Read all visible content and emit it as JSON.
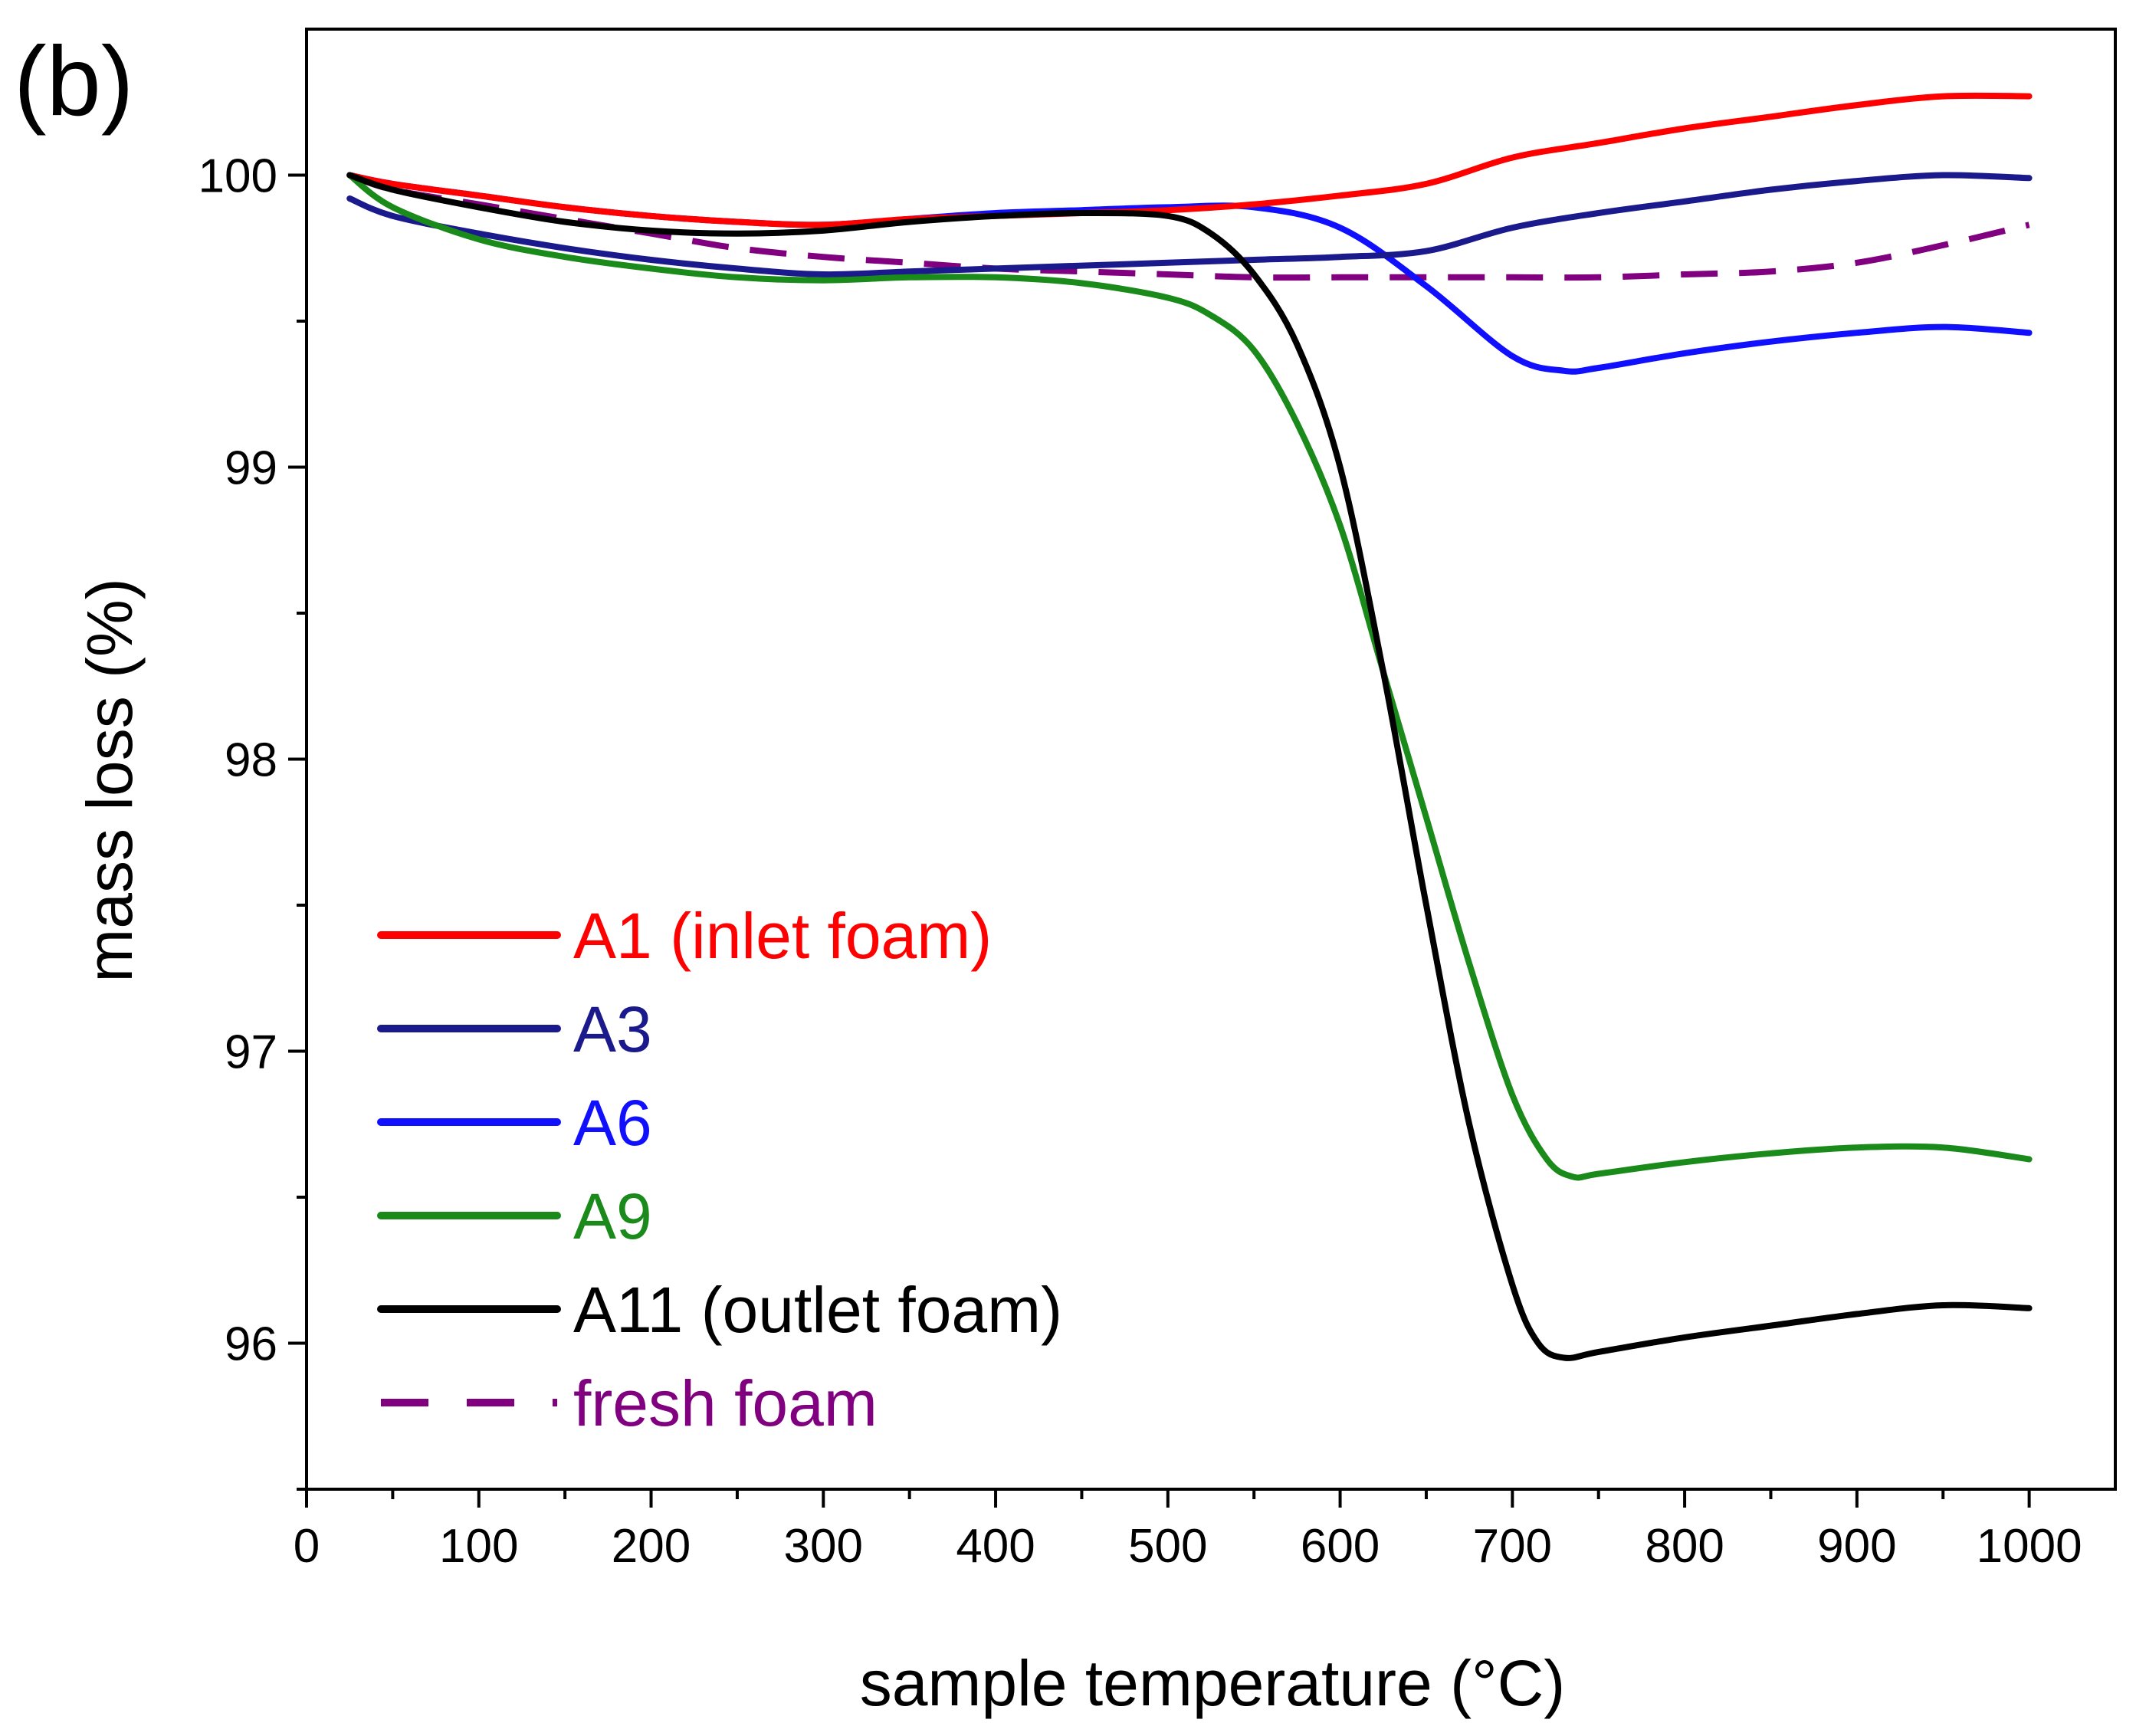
{
  "chart_data": {
    "type": "line",
    "panel_label": "(b)",
    "xlabel": "sample temperature (°C)",
    "ylabel": "mass loss (%)",
    "xlim": [
      0,
      1050
    ],
    "ylim": [
      95.5,
      100.5
    ],
    "xticks": [
      0,
      100,
      200,
      300,
      400,
      500,
      600,
      700,
      800,
      900,
      1000
    ],
    "xminor": [
      50,
      150,
      250,
      350,
      450,
      550,
      650,
      750,
      850,
      950
    ],
    "yticks": [
      96,
      97,
      98,
      99,
      100
    ],
    "yminor": [
      95.5,
      96.5,
      97.5,
      98.5,
      99.5
    ],
    "legend_position": "lower-left",
    "series": [
      {
        "name": "A1 (inlet foam)",
        "color": "#ff0000",
        "dash": "solid",
        "x": [
          25,
          50,
          100,
          150,
          200,
          250,
          300,
          350,
          400,
          450,
          500,
          550,
          600,
          650,
          700,
          750,
          800,
          850,
          900,
          950,
          1000
        ],
        "y": [
          100.0,
          99.97,
          99.93,
          99.89,
          99.86,
          99.84,
          99.83,
          99.85,
          99.86,
          99.87,
          99.88,
          99.9,
          99.93,
          99.97,
          100.06,
          100.11,
          100.16,
          100.2,
          100.24,
          100.27,
          100.27
        ]
      },
      {
        "name": "A3",
        "color": "#1a1a8c",
        "dash": "solid",
        "x": [
          25,
          50,
          100,
          150,
          200,
          250,
          300,
          350,
          400,
          450,
          500,
          550,
          600,
          650,
          700,
          750,
          800,
          850,
          900,
          950,
          1000
        ],
        "y": [
          99.92,
          99.86,
          99.8,
          99.75,
          99.71,
          99.68,
          99.66,
          99.67,
          99.68,
          99.69,
          99.7,
          99.71,
          99.72,
          99.74,
          99.82,
          99.87,
          99.91,
          99.95,
          99.98,
          100.0,
          99.99
        ]
      },
      {
        "name": "A6",
        "color": "#1010ff",
        "dash": "solid",
        "x": [
          25,
          50,
          100,
          150,
          200,
          250,
          300,
          350,
          400,
          450,
          500,
          550,
          600,
          650,
          700,
          730,
          750,
          800,
          850,
          900,
          950,
          1000
        ],
        "y": [
          100.0,
          99.97,
          99.93,
          99.89,
          99.86,
          99.84,
          99.83,
          99.85,
          99.87,
          99.88,
          99.89,
          99.89,
          99.82,
          99.62,
          99.38,
          99.33,
          99.34,
          99.39,
          99.43,
          99.46,
          99.48,
          99.46
        ]
      },
      {
        "name": "A9",
        "color": "#1a8a1a",
        "dash": "solid",
        "x": [
          25,
          50,
          100,
          150,
          200,
          250,
          300,
          350,
          400,
          450,
          500,
          525,
          550,
          575,
          600,
          625,
          650,
          675,
          700,
          720,
          735,
          750,
          800,
          850,
          900,
          950,
          1000
        ],
        "y": [
          100.0,
          99.89,
          99.78,
          99.72,
          99.68,
          99.65,
          99.64,
          99.65,
          99.65,
          99.63,
          99.58,
          99.52,
          99.4,
          99.15,
          98.8,
          98.3,
          97.8,
          97.3,
          96.85,
          96.63,
          96.57,
          96.58,
          96.62,
          96.65,
          96.67,
          96.67,
          96.63
        ]
      },
      {
        "name": "A11 (outlet foam)",
        "color": "#000000",
        "dash": "solid",
        "x": [
          25,
          50,
          100,
          150,
          200,
          250,
          300,
          350,
          400,
          450,
          500,
          525,
          550,
          575,
          600,
          625,
          650,
          675,
          700,
          715,
          730,
          750,
          800,
          850,
          900,
          950,
          1000
        ],
        "y": [
          100.0,
          99.95,
          99.89,
          99.84,
          99.81,
          99.8,
          99.81,
          99.84,
          99.86,
          99.87,
          99.86,
          99.8,
          99.66,
          99.42,
          99.0,
          98.3,
          97.5,
          96.75,
          96.2,
          96.0,
          95.95,
          95.97,
          96.02,
          96.06,
          96.1,
          96.13,
          96.12
        ]
      },
      {
        "name": "fresh foam",
        "color": "#800080",
        "dash": "dashed",
        "x": [
          25,
          50,
          100,
          150,
          200,
          250,
          300,
          350,
          400,
          450,
          500,
          550,
          600,
          650,
          700,
          750,
          800,
          850,
          900,
          950,
          1000
        ],
        "y": [
          100.0,
          99.95,
          99.9,
          99.85,
          99.8,
          99.75,
          99.72,
          99.7,
          99.68,
          99.67,
          99.66,
          99.65,
          99.65,
          99.65,
          99.65,
          99.65,
          99.66,
          99.67,
          99.7,
          99.76,
          99.83
        ]
      }
    ]
  }
}
